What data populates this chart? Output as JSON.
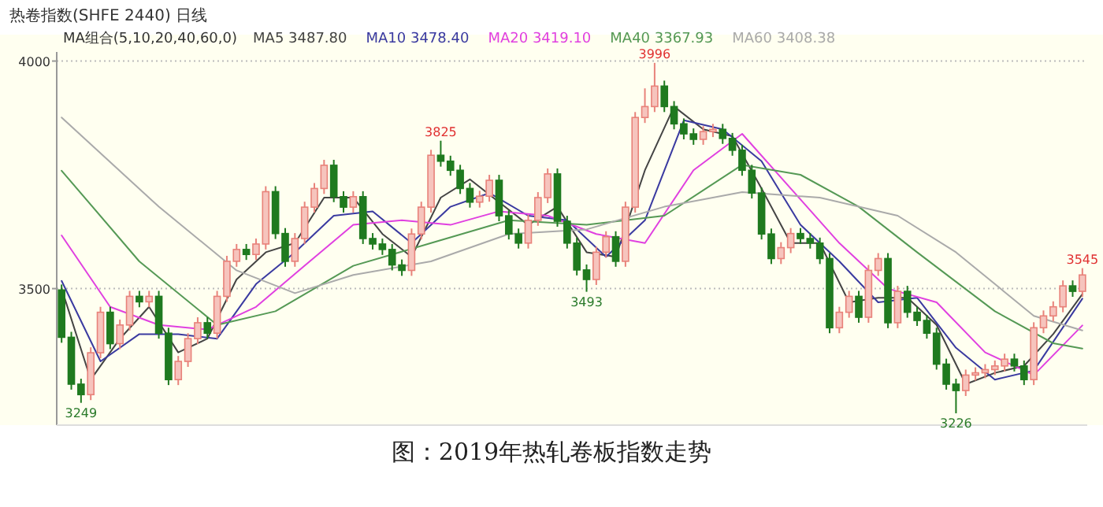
{
  "chart_data": {
    "type": "candlestick",
    "title": "热卷指数(SHFE 2440)  日线",
    "subtitle": "MA组合(5,10,20,40,60,0)",
    "categories": [
      null,
      null,
      null,
      null,
      null,
      null,
      null,
      null,
      null,
      null,
      null,
      null,
      null,
      null,
      null,
      null,
      null,
      null,
      null,
      null,
      null,
      null,
      null,
      null,
      null,
      null,
      null,
      null,
      null,
      null,
      null,
      null,
      null,
      null,
      null,
      null,
      null,
      null,
      null,
      null,
      null,
      null,
      null,
      null,
      null,
      null,
      null,
      null,
      null,
      null,
      null,
      null,
      null,
      null,
      null,
      null,
      null,
      null,
      null,
      null,
      null,
      null,
      null,
      null,
      null,
      null,
      null,
      null,
      null,
      null,
      null,
      null,
      null,
      null,
      null,
      null,
      null,
      null,
      null,
      null,
      null,
      null,
      null,
      null,
      null,
      null,
      null,
      null,
      null,
      null,
      null,
      null,
      null,
      null,
      null,
      null,
      null,
      null,
      null,
      null,
      null,
      null,
      null,
      null,
      null,
      null
    ],
    "ohlc": [
      [
        3497,
        3509,
        3381,
        3393
      ],
      [
        3393,
        3405,
        3278,
        3290
      ],
      [
        3290,
        3302,
        3249,
        3267
      ],
      [
        3267,
        3371,
        3255,
        3359
      ],
      [
        3359,
        3460,
        3347,
        3448
      ],
      [
        3448,
        3460,
        3367,
        3379
      ],
      [
        3379,
        3432,
        3367,
        3420
      ],
      [
        3420,
        3495,
        3408,
        3483
      ],
      [
        3483,
        3495,
        3459,
        3471
      ],
      [
        3471,
        3495,
        3459,
        3483
      ],
      [
        3483,
        3495,
        3390,
        3402
      ],
      [
        3402,
        3414,
        3288,
        3300
      ],
      [
        3300,
        3352,
        3288,
        3340
      ],
      [
        3340,
        3402,
        3328,
        3390
      ],
      [
        3390,
        3437,
        3378,
        3425
      ],
      [
        3425,
        3437,
        3390,
        3402
      ],
      [
        3402,
        3495,
        3390,
        3483
      ],
      [
        3483,
        3572,
        3471,
        3560
      ],
      [
        3560,
        3598,
        3548,
        3586
      ],
      [
        3586,
        3598,
        3563,
        3575
      ],
      [
        3575,
        3610,
        3563,
        3598
      ],
      [
        3598,
        3725,
        3586,
        3713
      ],
      [
        3713,
        3725,
        3609,
        3621
      ],
      [
        3621,
        3633,
        3548,
        3560
      ],
      [
        3560,
        3622,
        3548,
        3610
      ],
      [
        3610,
        3691,
        3598,
        3679
      ],
      [
        3679,
        3732,
        3667,
        3720
      ],
      [
        3720,
        3783,
        3708,
        3771
      ],
      [
        3771,
        3783,
        3690,
        3702
      ],
      [
        3702,
        3714,
        3667,
        3679
      ],
      [
        3679,
        3714,
        3667,
        3702
      ],
      [
        3702,
        3714,
        3598,
        3610
      ],
      [
        3610,
        3622,
        3586,
        3598
      ],
      [
        3598,
        3610,
        3574,
        3586
      ],
      [
        3586,
        3598,
        3540,
        3552
      ],
      [
        3552,
        3564,
        3528,
        3540
      ],
      [
        3540,
        3632,
        3528,
        3620
      ],
      [
        3620,
        3691,
        3608,
        3679
      ],
      [
        3679,
        3805,
        3667,
        3793
      ],
      [
        3793,
        3825,
        3768,
        3780
      ],
      [
        3780,
        3792,
        3748,
        3760
      ],
      [
        3760,
        3772,
        3708,
        3720
      ],
      [
        3720,
        3732,
        3678,
        3690
      ],
      [
        3690,
        3715,
        3678,
        3703
      ],
      [
        3703,
        3750,
        3691,
        3738
      ],
      [
        3738,
        3750,
        3648,
        3660
      ],
      [
        3660,
        3672,
        3608,
        3620
      ],
      [
        3620,
        3632,
        3588,
        3600
      ],
      [
        3600,
        3662,
        3588,
        3650
      ],
      [
        3650,
        3712,
        3638,
        3700
      ],
      [
        3700,
        3764,
        3688,
        3752
      ],
      [
        3752,
        3764,
        3636,
        3648
      ],
      [
        3648,
        3660,
        3588,
        3600
      ],
      [
        3600,
        3612,
        3529,
        3541
      ],
      [
        3541,
        3553,
        3493,
        3520
      ],
      [
        3520,
        3592,
        3508,
        3580
      ],
      [
        3580,
        3626,
        3568,
        3614
      ],
      [
        3614,
        3626,
        3548,
        3560
      ],
      [
        3560,
        3691,
        3548,
        3679
      ],
      [
        3679,
        3888,
        3667,
        3876
      ],
      [
        3876,
        3940,
        3864,
        3900
      ],
      [
        3900,
        3996,
        3888,
        3945
      ],
      [
        3945,
        3957,
        3888,
        3900
      ],
      [
        3900,
        3912,
        3850,
        3862
      ],
      [
        3862,
        3874,
        3828,
        3840
      ],
      [
        3840,
        3852,
        3816,
        3828
      ],
      [
        3828,
        3857,
        3816,
        3845
      ],
      [
        3845,
        3862,
        3833,
        3850
      ],
      [
        3850,
        3862,
        3818,
        3830
      ],
      [
        3830,
        3842,
        3792,
        3804
      ],
      [
        3804,
        3816,
        3748,
        3760
      ],
      [
        3760,
        3772,
        3698,
        3710
      ],
      [
        3710,
        3722,
        3608,
        3620
      ],
      [
        3620,
        3632,
        3554,
        3566
      ],
      [
        3566,
        3602,
        3554,
        3590
      ],
      [
        3590,
        3633,
        3578,
        3621
      ],
      [
        3621,
        3633,
        3598,
        3610
      ],
      [
        3610,
        3622,
        3588,
        3600
      ],
      [
        3600,
        3612,
        3554,
        3566
      ],
      [
        3566,
        3578,
        3402,
        3414
      ],
      [
        3414,
        3460,
        3402,
        3448
      ],
      [
        3448,
        3495,
        3436,
        3483
      ],
      [
        3483,
        3495,
        3425,
        3437
      ],
      [
        3437,
        3552,
        3425,
        3540
      ],
      [
        3540,
        3578,
        3528,
        3566
      ],
      [
        3566,
        3578,
        3413,
        3425
      ],
      [
        3425,
        3506,
        3413,
        3494
      ],
      [
        3494,
        3506,
        3436,
        3448
      ],
      [
        3448,
        3460,
        3418,
        3430
      ],
      [
        3430,
        3442,
        3390,
        3402
      ],
      [
        3402,
        3414,
        3322,
        3334
      ],
      [
        3334,
        3346,
        3278,
        3290
      ],
      [
        3290,
        3302,
        3226,
        3276
      ],
      [
        3276,
        3322,
        3264,
        3310
      ],
      [
        3310,
        3327,
        3298,
        3315
      ],
      [
        3315,
        3334,
        3303,
        3322
      ],
      [
        3322,
        3342,
        3310,
        3330
      ],
      [
        3330,
        3357,
        3318,
        3345
      ],
      [
        3345,
        3357,
        3318,
        3330
      ],
      [
        3330,
        3342,
        3288,
        3300
      ],
      [
        3300,
        3426,
        3288,
        3414
      ],
      [
        3414,
        3452,
        3402,
        3440
      ],
      [
        3440,
        3472,
        3428,
        3460
      ],
      [
        3460,
        3518,
        3448,
        3506
      ],
      [
        3506,
        3518,
        3482,
        3494
      ],
      [
        3494,
        3545,
        3482,
        3530
      ]
    ],
    "series": [
      {
        "type": "line",
        "name": "MA5 3487.80",
        "color": "#444444",
        "values": [
          3500,
          null,
          null,
          3300,
          null,
          null,
          3390,
          null,
          null,
          3460,
          null,
          null,
          3360,
          null,
          null,
          3390,
          null,
          null,
          3520,
          null,
          null,
          3580,
          null,
          null,
          3600,
          null,
          null,
          3700,
          null,
          null,
          3700,
          null,
          null,
          3620,
          null,
          null,
          3570,
          null,
          null,
          3700,
          null,
          null,
          3740,
          null,
          null,
          3690,
          null,
          null,
          3640,
          null,
          null,
          3680,
          null,
          null,
          3580,
          null,
          null,
          3570,
          null,
          null,
          3760,
          null,
          null,
          3900,
          null,
          null,
          3850,
          null,
          null,
          3835,
          null,
          null,
          3720,
          null,
          null,
          3600,
          null,
          null,
          3600,
          null,
          null,
          3470,
          null,
          null,
          3480,
          null,
          null,
          3480,
          null,
          null,
          3420,
          null,
          null,
          3290,
          null,
          null,
          3315,
          null,
          null,
          3330,
          null,
          null,
          3400,
          null,
          null,
          3488
        ]
      },
      {
        "type": "line",
        "name": "MA10 3478.40",
        "color": "#3a3aa0",
        "values": [
          3517,
          null,
          null,
          null,
          3340,
          null,
          null,
          null,
          3400,
          null,
          null,
          null,
          3400,
          null,
          null,
          null,
          3390,
          null,
          null,
          null,
          3510,
          null,
          null,
          null,
          3580,
          null,
          null,
          null,
          3660,
          null,
          null,
          null,
          3670,
          null,
          null,
          null,
          3600,
          null,
          null,
          null,
          3680,
          null,
          null,
          null,
          3710,
          null,
          null,
          null,
          3660,
          null,
          null,
          null,
          3650,
          null,
          null,
          null,
          3570,
          null,
          null,
          null,
          3650,
          null,
          null,
          null,
          3870,
          null,
          null,
          null,
          3850,
          null,
          null,
          null,
          3780,
          null,
          null,
          null,
          3640,
          null,
          null,
          null,
          3560,
          null,
          null,
          null,
          3470,
          null,
          null,
          null,
          3480,
          null,
          null,
          null,
          3370,
          null,
          null,
          null,
          3300,
          null,
          null,
          null,
          3320,
          null,
          null,
          null,
          null,
          3478
        ]
      },
      {
        "type": "line",
        "name": "MA20 3419.10",
        "color": "#e040e0",
        "values": [
          3617,
          null,
          null,
          null,
          null,
          3460,
          null,
          null,
          null,
          null,
          3420,
          null,
          null,
          null,
          null,
          3410,
          null,
          null,
          null,
          null,
          3460,
          null,
          null,
          null,
          null,
          3550,
          null,
          null,
          null,
          null,
          3640,
          null,
          null,
          null,
          null,
          3650,
          null,
          null,
          null,
          null,
          3640,
          null,
          null,
          null,
          null,
          3670,
          null,
          null,
          null,
          null,
          3660,
          null,
          null,
          null,
          null,
          3620,
          null,
          null,
          null,
          null,
          3600,
          null,
          null,
          null,
          null,
          3760,
          null,
          null,
          null,
          null,
          3840,
          null,
          null,
          null,
          null,
          3720,
          null,
          null,
          null,
          null,
          3600,
          null,
          null,
          null,
          null,
          3500,
          null,
          null,
          null,
          null,
          3470,
          null,
          null,
          null,
          null,
          3360,
          null,
          null,
          null,
          null,
          3310,
          null,
          null,
          null,
          null,
          3419
        ]
      },
      {
        "type": "line",
        "name": "MA40 3367.93",
        "color": "#559955",
        "values": [
          3759,
          null,
          null,
          null,
          null,
          null,
          null,
          null,
          3560,
          null,
          null,
          null,
          null,
          null,
          null,
          null,
          3420,
          null,
          null,
          null,
          null,
          null,
          3450,
          null,
          null,
          null,
          null,
          null,
          null,
          null,
          3550,
          null,
          null,
          null,
          null,
          null,
          null,
          null,
          3600,
          null,
          null,
          null,
          null,
          null,
          null,
          null,
          3650,
          null,
          null,
          null,
          null,
          null,
          null,
          null,
          3640,
          null,
          null,
          null,
          null,
          null,
          null,
          null,
          3660,
          null,
          null,
          null,
          null,
          null,
          null,
          null,
          3772,
          null,
          null,
          null,
          null,
          null,
          3750,
          null,
          null,
          null,
          null,
          null,
          3680,
          null,
          null,
          null,
          null,
          null,
          3580,
          null,
          null,
          null,
          null,
          null,
          null,
          null,
          3450,
          null,
          null,
          null,
          null,
          null,
          3380,
          null,
          null,
          3368
        ]
      },
      {
        "type": "line",
        "name": "MA60 3408.38",
        "color": "#aaaaaa",
        "values": [
          3876,
          null,
          null,
          null,
          null,
          null,
          null,
          null,
          null,
          null,
          3680,
          null,
          null,
          null,
          null,
          null,
          null,
          null,
          3540,
          null,
          null,
          null,
          null,
          null,
          3490,
          null,
          null,
          null,
          null,
          null,
          3530,
          null,
          null,
          null,
          null,
          null,
          null,
          null,
          3560,
          null,
          null,
          null,
          null,
          null,
          null,
          null,
          3620,
          null,
          null,
          null,
          null,
          null,
          null,
          null,
          3630,
          null,
          null,
          null,
          null,
          null,
          null,
          null,
          3680,
          null,
          null,
          null,
          null,
          null,
          null,
          null,
          3712,
          null,
          null,
          null,
          null,
          null,
          null,
          null,
          3700,
          null,
          null,
          null,
          null,
          null,
          null,
          null,
          3660,
          null,
          null,
          null,
          null,
          null,
          3580,
          null,
          null,
          null,
          null,
          null,
          null,
          null,
          3440,
          null,
          null,
          null,
          null,
          3408
        ]
      }
    ],
    "ylim": [
      3200,
      4020
    ],
    "yticks": [
      3500,
      4000
    ],
    "grid": "y",
    "tick_labels": "y",
    "legend": "top left",
    "annotations": [
      {
        "text": "3249",
        "y": 3249
      },
      {
        "text": "3825",
        "y": 3825
      },
      {
        "text": "3493",
        "y": 3493
      },
      {
        "text": "3996",
        "y": 3996
      },
      {
        "text": "3226",
        "y": 3226
      },
      {
        "text": "3545",
        "y": 3545
      },
      "图：2019年热轧卷板指数走势"
    ]
  }
}
